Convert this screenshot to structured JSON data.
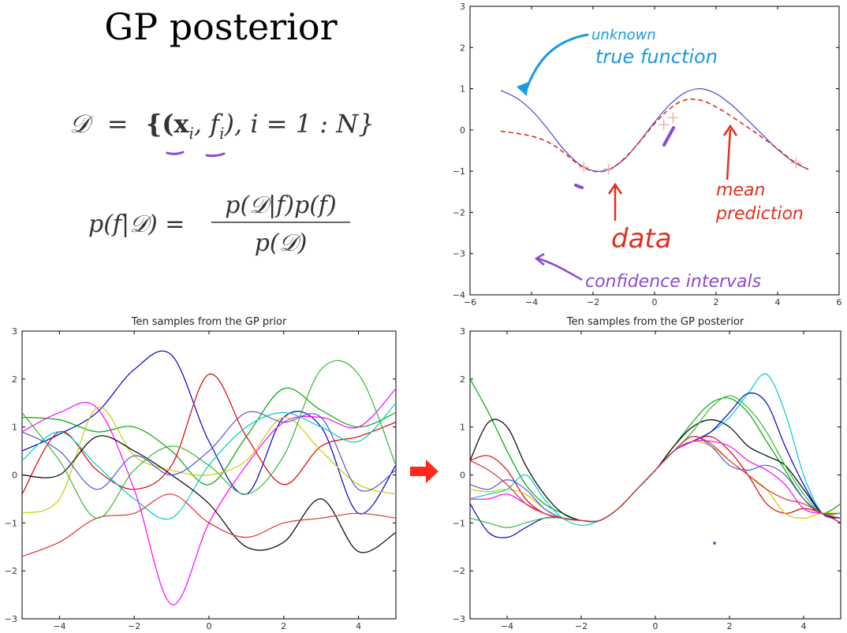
{
  "slide": {
    "title": "GP posterior",
    "eq1": {
      "lhs": "𝒟",
      "eq": "=",
      "rhs": "{(x",
      "sub_i": "i",
      "sep1": ", f",
      "sub_i2": "i",
      "rhs_tail": "), i = 1 : N}"
    },
    "eq2": {
      "lhs": "p(f|𝒟) =",
      "num": "p(𝒟|f)p(f)",
      "den": "p(𝒟)"
    },
    "annotations": {
      "unknown_true_function": [
        "unknown",
        "true function"
      ],
      "mean_prediction": [
        "mean",
        "prediction"
      ],
      "data": "data",
      "confidence_intervals": "confidence intervals"
    },
    "colors": {
      "true_function": "#4a4ad0",
      "mean": "#e0301e",
      "annot_blue": "#1a9ae0",
      "annot_red": "#e0301e",
      "annot_purple": "#8a4ad0",
      "arrow": "#ff2a1a"
    }
  },
  "chart_data": [
    {
      "type": "line",
      "title": "",
      "xlim": [
        -6,
        6
      ],
      "ylim": [
        -4,
        3
      ],
      "xticks": [
        -6,
        -4,
        -2,
        0,
        2,
        4,
        6
      ],
      "yticks": [
        -4,
        -3,
        -2,
        -1,
        0,
        1,
        2,
        3
      ],
      "x": [
        -5,
        -4.5,
        -4,
        -3.5,
        -3,
        -2.5,
        -2,
        -1.5,
        -1,
        -0.5,
        0,
        0.5,
        1,
        1.5,
        2,
        2.5,
        3,
        3.5,
        4,
        4.5,
        5
      ],
      "series": [
        {
          "values": [
            0.96,
            0.78,
            0.48,
            0.05,
            -0.43,
            -0.8,
            -0.99,
            -0.96,
            -0.72,
            -0.29,
            0.19,
            0.62,
            0.91,
            1.0,
            0.88,
            0.61,
            0.26,
            -0.11,
            -0.47,
            -0.77,
            -0.96
          ],
          "style": "solid",
          "color": "#4a4ad0"
        },
        {
          "values": [
            -0.03,
            -0.08,
            -0.15,
            -0.28,
            -0.52,
            -0.82,
            -1.0,
            -0.97,
            -0.7,
            -0.3,
            0.15,
            0.52,
            0.73,
            0.72,
            0.56,
            0.33,
            0.08,
            -0.18,
            -0.46,
            -0.75,
            -0.96
          ],
          "style": "dashed",
          "color": "#e0301e"
        }
      ],
      "data_points": {
        "x": [
          -2.3,
          -1.5,
          0.3,
          0.6,
          4.6
        ],
        "y": [
          -0.9,
          -0.95,
          0.13,
          0.3,
          -0.8
        ]
      }
    },
    {
      "type": "line",
      "title": "Ten samples from the GP prior",
      "xlim": [
        -5,
        5
      ],
      "ylim": [
        -3,
        3
      ],
      "xticks": [
        -4,
        -2,
        0,
        2,
        4
      ],
      "yticks": [
        -3,
        -2,
        -1,
        0,
        1,
        2,
        3
      ],
      "x": [
        -5,
        -4,
        -3,
        -2,
        -1,
        0,
        1,
        2,
        3,
        4,
        5
      ],
      "series": [
        {
          "color": "#0000cc",
          "values": [
            0.5,
            0.85,
            1.3,
            2.2,
            2.5,
            0.7,
            -0.4,
            1.2,
            1.0,
            -0.8,
            0.2
          ]
        },
        {
          "color": "#00aa00",
          "values": [
            1.2,
            1.15,
            0.9,
            1.0,
            0.5,
            -0.2,
            0.8,
            1.8,
            1.35,
            1.0,
            1.3
          ]
        },
        {
          "color": "#dd0000",
          "values": [
            -0.4,
            0.9,
            0.1,
            -0.3,
            0.2,
            2.1,
            0.8,
            -0.2,
            0.6,
            0.8,
            1.1
          ]
        },
        {
          "color": "#00cccc",
          "values": [
            0.3,
            0.9,
            0.2,
            -0.5,
            -0.9,
            0.2,
            1.0,
            1.3,
            1.0,
            0.7,
            1.5
          ]
        },
        {
          "color": "#ff00ff",
          "values": [
            0.9,
            1.3,
            1.4,
            -0.3,
            -2.7,
            -1.0,
            0.2,
            1.1,
            1.2,
            1.0,
            1.8
          ]
        },
        {
          "color": "#cccc00",
          "values": [
            -0.8,
            -0.5,
            1.4,
            0.4,
            0.1,
            0.0,
            0.3,
            1.2,
            0.5,
            -0.2,
            -0.4
          ]
        },
        {
          "color": "#000000",
          "values": [
            0.0,
            0.0,
            0.8,
            0.5,
            0.0,
            -0.6,
            -1.5,
            -1.4,
            -0.5,
            -1.6,
            -1.2
          ]
        },
        {
          "color": "#dd3333",
          "values": [
            -1.7,
            -1.4,
            -0.9,
            -0.8,
            -0.4,
            -1.0,
            -1.3,
            -1.0,
            -0.9,
            -0.8,
            -0.9
          ]
        },
        {
          "color": "#5555dd",
          "values": [
            0.9,
            0.5,
            -0.3,
            0.4,
            0.0,
            0.5,
            1.3,
            1.1,
            1.2,
            -0.3,
            0.1
          ]
        },
        {
          "color": "#33bb33",
          "values": [
            1.3,
            0.3,
            -0.9,
            0.1,
            0.6,
            0.2,
            -0.4,
            0.4,
            2.2,
            2.1,
            0.2
          ]
        }
      ]
    },
    {
      "type": "line",
      "title": "Ten samples from the GP posterior",
      "xlim": [
        -5,
        5
      ],
      "ylim": [
        -3,
        3
      ],
      "xticks": [
        -4,
        -2,
        0,
        2,
        4
      ],
      "yticks": [
        -3,
        -2,
        -1,
        0,
        1,
        2,
        3
      ],
      "x": [
        -5,
        -4.5,
        -4,
        -3.5,
        -3,
        -2.5,
        -2,
        -1.5,
        -1,
        -0.5,
        0,
        0.5,
        1,
        1.5,
        2,
        2.5,
        3,
        3.5,
        4,
        4.5,
        5
      ],
      "series": [
        {
          "color": "#00aa00",
          "values": [
            2.0,
            1.3,
            0.5,
            -0.2,
            -0.6,
            -0.8,
            -0.95,
            -0.95,
            -0.7,
            -0.3,
            0.1,
            0.6,
            1.1,
            1.5,
            1.6,
            1.3,
            0.7,
            0.1,
            -0.5,
            -0.8,
            -0.6
          ]
        },
        {
          "color": "#000000",
          "values": [
            0.3,
            1.1,
            1.0,
            0.2,
            -0.4,
            -0.8,
            -0.95,
            -0.95,
            -0.7,
            -0.3,
            0.1,
            0.6,
            1.0,
            1.15,
            1.0,
            0.6,
            0.4,
            0.2,
            -0.3,
            -0.8,
            -0.9
          ]
        },
        {
          "color": "#00cccc",
          "values": [
            -0.5,
            -0.4,
            -0.3,
            0.0,
            -0.5,
            -0.9,
            -1.05,
            -0.95,
            -0.7,
            -0.3,
            0.1,
            0.5,
            0.7,
            0.9,
            1.2,
            1.7,
            2.1,
            1.3,
            0.0,
            -0.8,
            -0.9
          ]
        },
        {
          "color": "#0000cc",
          "values": [
            -0.6,
            -1.2,
            -1.3,
            -1.1,
            -0.9,
            -0.9,
            -0.95,
            -0.95,
            -0.7,
            -0.3,
            0.1,
            0.5,
            0.7,
            0.9,
            1.3,
            1.7,
            1.5,
            0.6,
            -0.2,
            -0.8,
            -0.9
          ]
        },
        {
          "color": "#dd0000",
          "values": [
            0.3,
            0.4,
            0.1,
            -0.5,
            -0.8,
            -0.9,
            -0.95,
            -0.95,
            -0.7,
            -0.3,
            0.1,
            0.5,
            0.7,
            0.8,
            0.5,
            0.0,
            -0.6,
            -0.8,
            -0.7,
            -0.8,
            -1.0
          ]
        },
        {
          "color": "#cccc00",
          "values": [
            -0.3,
            -0.35,
            -0.3,
            -0.4,
            -0.7,
            -0.9,
            -0.95,
            -0.95,
            -0.7,
            -0.3,
            0.1,
            0.5,
            0.7,
            0.6,
            0.3,
            0.0,
            -0.3,
            -0.8,
            -0.9,
            -0.8,
            -0.8
          ]
        },
        {
          "color": "#ff00ff",
          "values": [
            -0.5,
            -0.5,
            -0.4,
            -0.6,
            -0.8,
            -0.9,
            -0.95,
            -0.95,
            -0.7,
            -0.3,
            0.1,
            0.5,
            0.7,
            0.7,
            0.6,
            0.3,
            0.1,
            -0.2,
            -0.7,
            -0.8,
            -0.8
          ]
        },
        {
          "color": "#5555dd",
          "values": [
            -0.2,
            -0.3,
            -0.1,
            -0.3,
            -0.7,
            -0.9,
            -0.95,
            -0.95,
            -0.7,
            -0.3,
            0.1,
            0.5,
            0.8,
            0.6,
            0.2,
            0.1,
            0.2,
            0.0,
            -0.5,
            -0.8,
            -0.9
          ]
        },
        {
          "color": "#33bb33",
          "values": [
            -0.9,
            -1.0,
            -1.1,
            -1.0,
            -0.9,
            -0.9,
            -0.95,
            -0.95,
            -0.7,
            -0.3,
            0.1,
            0.5,
            0.9,
            1.4,
            1.65,
            1.4,
            0.9,
            0.2,
            -0.4,
            -0.8,
            -0.8
          ]
        },
        {
          "color": "#dd3333",
          "values": [
            0.3,
            0.1,
            -0.2,
            -0.6,
            -0.8,
            -0.9,
            -0.95,
            -0.95,
            -0.7,
            -0.3,
            0.1,
            0.5,
            0.8,
            0.65,
            0.3,
            0.0,
            -0.3,
            -0.5,
            -0.6,
            -0.8,
            -0.9
          ]
        }
      ]
    }
  ]
}
